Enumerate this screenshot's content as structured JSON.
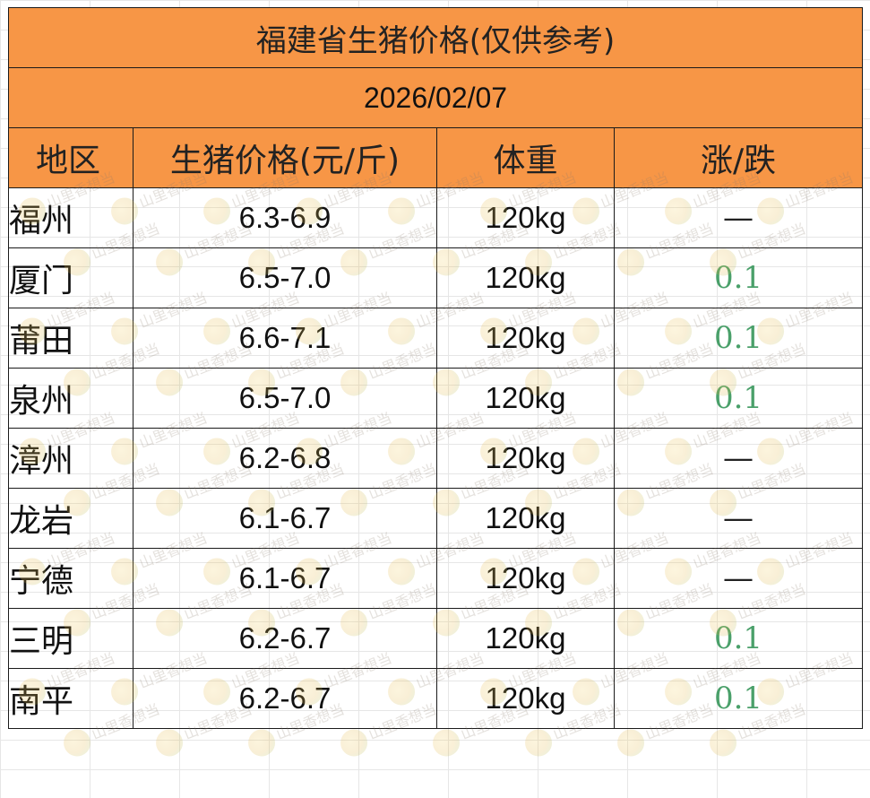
{
  "title": "福建省生猪价格(仅供参考)",
  "date": "2026/02/07",
  "headers": {
    "region": "地区",
    "price": "生猪价格(元/斤)",
    "weight": "体重",
    "change": "涨/跌"
  },
  "rows": [
    {
      "region": "福州",
      "price": "6.3-6.9",
      "weight": "120kg",
      "change": "—"
    },
    {
      "region": "厦门",
      "price": "6.5-7.0",
      "weight": "120kg",
      "change": "0.1"
    },
    {
      "region": "莆田",
      "price": "6.6-7.1",
      "weight": "120kg",
      "change": "0.1"
    },
    {
      "region": "泉州",
      "price": "6.5-7.0",
      "weight": "120kg",
      "change": "0.1"
    },
    {
      "region": "漳州",
      "price": "6.2-6.8",
      "weight": "120kg",
      "change": "—"
    },
    {
      "region": "龙岩",
      "price": "6.1-6.7",
      "weight": "120kg",
      "change": "—"
    },
    {
      "region": "宁德",
      "price": "6.1-6.7",
      "weight": "120kg",
      "change": "—"
    },
    {
      "region": "三明",
      "price": "6.2-6.7",
      "weight": "120kg",
      "change": "0.1"
    },
    {
      "region": "南平",
      "price": "6.2-6.7",
      "weight": "120kg",
      "change": "0.1"
    }
  ],
  "watermark": {
    "text": "山里香想当",
    "icon": "farm-logo-icon"
  },
  "colors": {
    "header_fill": "#f79646",
    "rise_text": "#4aa06a",
    "border": "#1a1a1a"
  }
}
